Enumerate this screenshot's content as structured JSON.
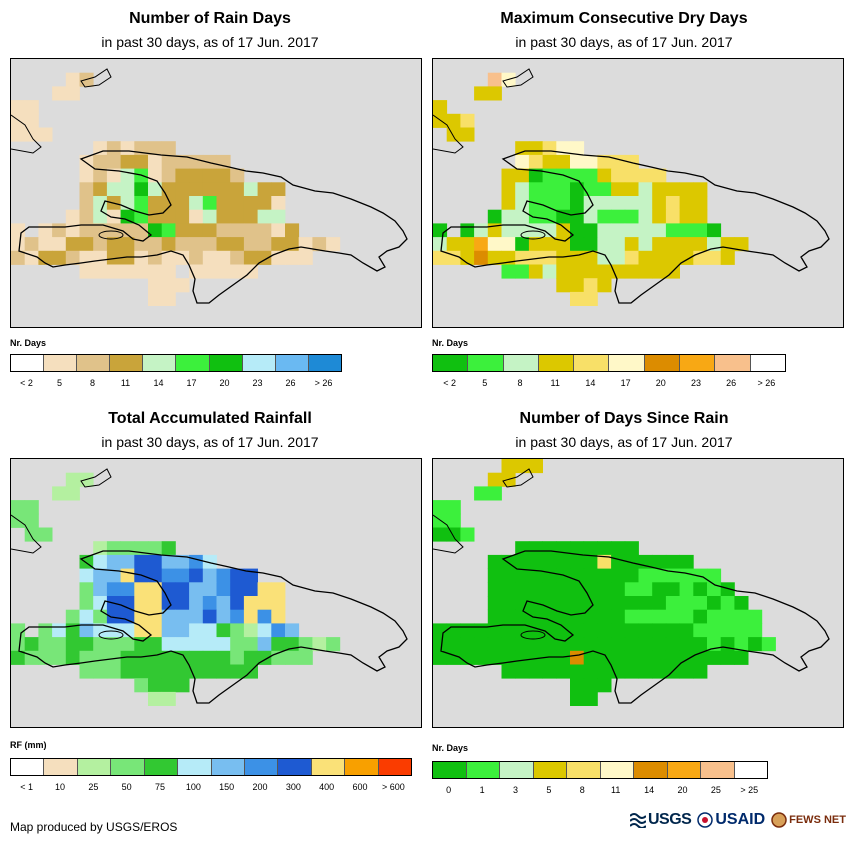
{
  "panels": [
    {
      "id": "rain-days",
      "title": "Number of Rain Days",
      "subtitle": "in past 30 days, as of 17 Jun. 2017",
      "unit": "Nr. Days",
      "legend_colors": [
        "#ffffff",
        "#f5dfbe",
        "#e0c28a",
        "#c9a43a",
        "#c5f3c5",
        "#3cf03c",
        "#10c010",
        "#b6ebf8",
        "#6ab9f2",
        "#1e8ad6"
      ],
      "legend_labels": [
        "< 2",
        "5",
        "8",
        "11",
        "14",
        "17",
        "20",
        "23",
        "26",
        "> 26"
      ],
      "grid": [
        "000000000000000000000000000000",
        "000012000000000000000000000000",
        "000110000000000000000000000000",
        "110000000000000000000000000000",
        "110000000000000000000000000000",
        "111000000000000000000000000000",
        "000000121222000000000000000000",
        "000001223312222200000000000000",
        "000001214512333320000000000000",
        "000002344643333334330000000000",
        "000002434533345333310000000000",
        "000012416533314333440000000000",
        "101212222265333222213000000000",
        "121133233223222332233121000000",
        "213321133121121123311100000000",
        "000001111111011111000000000000",
        "000000000011100000000000000000",
        "000000000011000000000000000000"
      ],
      "grid_colors": [
        "#dcdcdc",
        "#f5dfbe",
        "#e0c28a",
        "#c9a43a",
        "#c5f3c5",
        "#3cf03c",
        "#10c010",
        "#b6ebf8",
        "#6ab9f2",
        "#ffffff"
      ]
    },
    {
      "id": "dry-days",
      "title": "Maximum Consecutive Dry Days",
      "subtitle": "in past 30 days, as of 17 Jun. 2017",
      "unit": "Nr. Days",
      "legend_colors": [
        "#10c010",
        "#3cf03c",
        "#c5f3c5",
        "#dcc800",
        "#f8e068",
        "#fff8c8",
        "#dc8c00",
        "#f8a814",
        "#f8c08c",
        "#ffffff"
      ],
      "legend_labels": [
        "< 2",
        "5",
        "8",
        "11",
        "14",
        "17",
        "20",
        "23",
        "26",
        "> 26"
      ],
      "grid": [
        "000000000000000000000000000000",
        "000096000000000000000000000000",
        "000440000000000000000000000000",
        "400000000000000000000000000000",
        "445000000000000000000000000000",
        "044000000000000000000000000000",
        "000000445660000000000000000000",
        "000000654466555000000000000000",
        "000004412222455550000000000000",
        "000004322212244344440000000000",
        "000004322213333345440000000000",
        "000013322113222345440000000000",
        "101343333411333332221000000000",
        "344866144411334344443440000000",
        "554744555444335444455400000000",
        "000002243444444444000000000000",
        "000000000445400000000000000000",
        "000000000055000000000000000000"
      ],
      "grid_colors": [
        "#dcdcdc",
        "#10c010",
        "#3cf03c",
        "#c5f3c5",
        "#dcc800",
        "#f8e068",
        "#fff8c8",
        "#dc8c00",
        "#f8a814",
        "#f8c08c"
      ]
    },
    {
      "id": "rainfall",
      "title": "Total Accumulated Rainfall",
      "subtitle": "in past 30 days, as of 17 Jun. 2017",
      "unit": "RF (mm)",
      "legend_colors": [
        "#ffffff",
        "#f5dfbe",
        "#b4f0a0",
        "#78e678",
        "#32c832",
        "#b6ebf8",
        "#78bef0",
        "#3c91e6",
        "#1e5ad2",
        "#fae178",
        "#f8a000",
        "#fa3c00"
      ],
      "legend_labels": [
        "< 1",
        "10",
        "25",
        "50",
        "75",
        "100",
        "150",
        "200",
        "300",
        "400",
        "600",
        "> 600"
      ],
      "grid": [
        "000000000000000000000000000000",
        "000022000000000000000000000000",
        "000220000000000000000000000000",
        "330000000000000000000000000000",
        "330000000000000000000000000000",
        "033000000000000000000000000000",
        "000000233334000000000000000000",
        "000004566886675000000000000000",
        "000005669887786788000000000000",
        "000003677998866788990000000000",
        "000003588998867689990000000000",
        "000035388996668679790000000000",
        "303546555996655432576000000000",
        "343344333445555533644323000000",
        "433343334444444434433300000000",
        "000003334444444444000000000000",
        "000000000344400000000000000000",
        "000000000022000000000000000000"
      ],
      "grid_colors": [
        "#dcdcdc",
        "#f5dfbe",
        "#b4f0a0",
        "#78e678",
        "#32c832",
        "#b6ebf8",
        "#78bef0",
        "#3c91e6",
        "#1e5ad2",
        "#fae178"
      ]
    },
    {
      "id": "days-since-rain",
      "title": "Number of Days Since Rain",
      "subtitle": "in past 30 days, as of 17 Jun. 2017",
      "unit": "Nr. Days",
      "legend_colors": [
        "#10c010",
        "#3cf03c",
        "#c5f3c5",
        "#dcc800",
        "#f8e068",
        "#fff8c8",
        "#dc8c00",
        "#f8a814",
        "#f8c08c",
        "#ffffff"
      ],
      "legend_labels": [
        "0",
        "1",
        "3",
        "5",
        "8",
        "11",
        "14",
        "20",
        "25",
        "> 25"
      ],
      "grid": [
        "000004440000000000000000000000",
        "000044000000000000000000000000",
        "000220000000000000000000000000",
        "220000000000000000000000000000",
        "220000000000000000000000000000",
        "112000000000000000000000000000",
        "000000111111111000000000000000",
        "000011111111511111100000000000",
        "000011111111111222222000000000",
        "000011111111112211212100000000",
        "000011111111111112221210000000",
        "000011111111112222212222000000",
        "111111111111111111122222000000",
        "111111111111111111112121200000",
        "111111111171111111111110000000",
        "000001111111111111110000000000",
        "000000000011100000000000000000",
        "000000000011000000000000000000"
      ],
      "grid_colors": [
        "#dcdcdc",
        "#10c010",
        "#3cf03c",
        "#c5f3c5",
        "#dcc800",
        "#f8e068",
        "#fff8c8",
        "#dc8c00",
        "#f8a814",
        "#f8c08c"
      ]
    }
  ],
  "footer": {
    "credit": "Map produced by USGS/EROS",
    "logos": {
      "usgs": "USGS",
      "usaid": "USAID",
      "fews": "FEWS NET"
    }
  }
}
